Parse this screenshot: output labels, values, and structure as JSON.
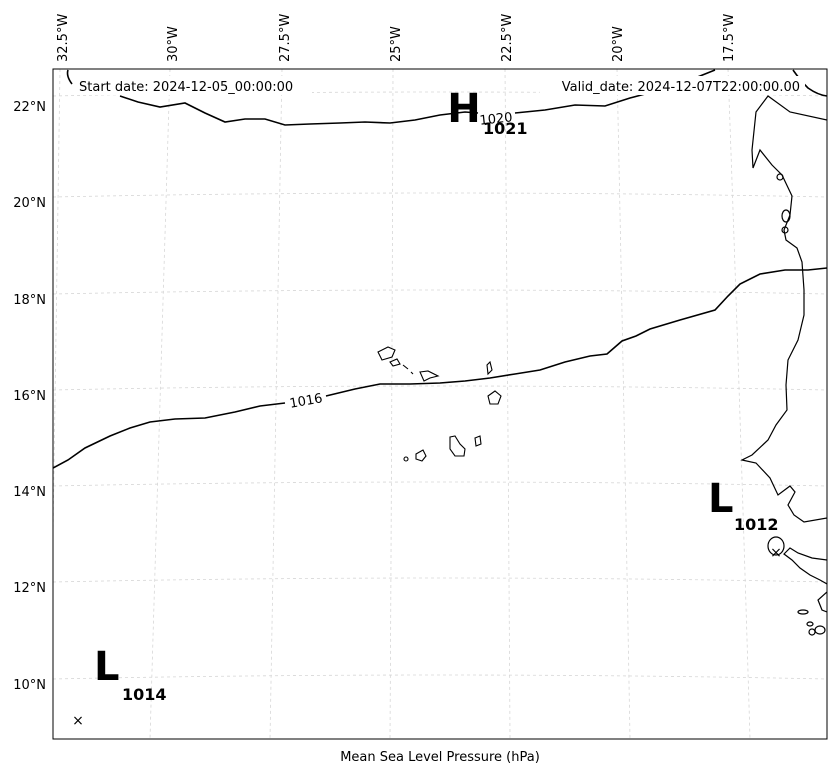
{
  "header": {
    "start_date": "Start date: 2024-12-05_00:00:00",
    "valid_date": "Valid_date: 2024-12-07T22:00:00.00"
  },
  "footer": {
    "caption": "Mean Sea Level Pressure (hPa)"
  },
  "axes": {
    "lon_labels": [
      "32.5°W",
      "30°W",
      "27.5°W",
      "25°W",
      "22.5°W",
      "20°W",
      "17.5°W"
    ],
    "lat_labels": [
      "22°N",
      "20°N",
      "18°N",
      "16°N",
      "14°N",
      "12°N",
      "10°N"
    ]
  },
  "isobars": [
    {
      "label": "1020"
    },
    {
      "label": "1016"
    }
  ],
  "pressure_centers": [
    {
      "kind": "H",
      "value": "1021"
    },
    {
      "kind": "L",
      "value": "1012"
    },
    {
      "kind": "L",
      "value": "1014"
    }
  ],
  "center_markers": [
    "×",
    "×"
  ]
}
